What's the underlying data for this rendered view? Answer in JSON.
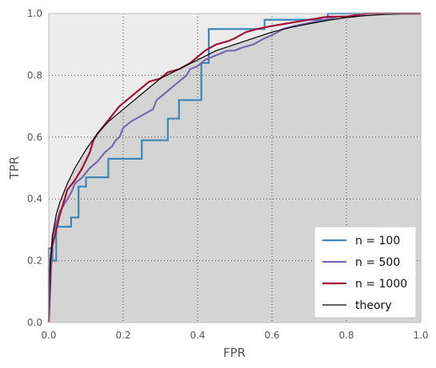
{
  "chart_data": {
    "type": "line",
    "title": "",
    "xlabel": "FPR",
    "ylabel": "TPR",
    "xlim": [
      0.0,
      1.0
    ],
    "ylim": [
      0.0,
      1.0
    ],
    "xticks": [
      "0.0",
      "0.2",
      "0.4",
      "0.6",
      "0.8",
      "1.0"
    ],
    "yticks": [
      "0.0",
      "0.2",
      "0.4",
      "0.6",
      "0.8",
      "1.0"
    ],
    "grid": true,
    "legend_position": "bottom-right",
    "colors": {
      "plot_background": "#ececec",
      "below_theory_fill": "#d4d4d4",
      "grid": "#444444",
      "frame": "#bbbbbb"
    },
    "series": [
      {
        "name": "n = 100",
        "color": "#3a87b8",
        "step": true,
        "x": [
          0.0,
          0.0,
          0.01,
          0.01,
          0.02,
          0.02,
          0.06,
          0.06,
          0.08,
          0.08,
          0.1,
          0.1,
          0.16,
          0.16,
          0.19,
          0.19,
          0.25,
          0.25,
          0.32,
          0.32,
          0.35,
          0.35,
          0.4,
          0.4,
          0.41,
          0.41,
          0.43,
          0.43,
          0.58,
          0.58,
          0.75,
          0.75,
          1.0
        ],
        "y": [
          0.0,
          0.24,
          0.24,
          0.2,
          0.2,
          0.31,
          0.31,
          0.34,
          0.34,
          0.44,
          0.44,
          0.47,
          0.47,
          0.53,
          0.53,
          0.53,
          0.53,
          0.59,
          0.59,
          0.66,
          0.66,
          0.72,
          0.72,
          0.72,
          0.72,
          0.84,
          0.84,
          0.95,
          0.95,
          0.98,
          0.98,
          1.0,
          1.0
        ]
      },
      {
        "name": "n = 500",
        "color": "#7a68ae",
        "step": false,
        "x": [
          0.0,
          0.01,
          0.02,
          0.03,
          0.04,
          0.06,
          0.07,
          0.09,
          0.11,
          0.13,
          0.15,
          0.17,
          0.18,
          0.19,
          0.2,
          0.22,
          0.25,
          0.28,
          0.29,
          0.3,
          0.32,
          0.33,
          0.35,
          0.37,
          0.38,
          0.4,
          0.42,
          0.44,
          0.46,
          0.48,
          0.5,
          0.52,
          0.55,
          0.58,
          0.6,
          0.63,
          0.66,
          0.7,
          0.74,
          0.78,
          0.82,
          0.86,
          0.9,
          0.95,
          1.0
        ],
        "y": [
          0.0,
          0.28,
          0.32,
          0.36,
          0.38,
          0.42,
          0.45,
          0.47,
          0.5,
          0.52,
          0.55,
          0.57,
          0.59,
          0.6,
          0.63,
          0.65,
          0.67,
          0.69,
          0.72,
          0.73,
          0.75,
          0.76,
          0.78,
          0.8,
          0.82,
          0.83,
          0.85,
          0.86,
          0.87,
          0.88,
          0.88,
          0.89,
          0.9,
          0.92,
          0.93,
          0.95,
          0.96,
          0.97,
          0.98,
          0.99,
          0.99,
          1.0,
          1.0,
          1.0,
          1.0
        ]
      },
      {
        "name": "n = 1000",
        "color": "#a31234",
        "step": false,
        "x": [
          0.0,
          0.005,
          0.01,
          0.02,
          0.03,
          0.04,
          0.05,
          0.07,
          0.09,
          0.11,
          0.12,
          0.13,
          0.15,
          0.17,
          0.19,
          0.21,
          0.23,
          0.25,
          0.27,
          0.3,
          0.32,
          0.35,
          0.38,
          0.4,
          0.42,
          0.45,
          0.48,
          0.5,
          0.53,
          0.56,
          0.6,
          0.65,
          0.7,
          0.75,
          0.8,
          0.85,
          0.9,
          0.95,
          1.0
        ],
        "y": [
          0.0,
          0.2,
          0.25,
          0.3,
          0.35,
          0.39,
          0.43,
          0.46,
          0.5,
          0.55,
          0.59,
          0.61,
          0.64,
          0.67,
          0.7,
          0.72,
          0.74,
          0.76,
          0.78,
          0.79,
          0.81,
          0.82,
          0.84,
          0.86,
          0.88,
          0.9,
          0.91,
          0.92,
          0.94,
          0.95,
          0.96,
          0.97,
          0.98,
          0.99,
          0.99,
          1.0,
          1.0,
          1.0,
          1.0
        ]
      },
      {
        "name": "theory",
        "color": "#000000",
        "step": false,
        "x": [
          0.0,
          0.002,
          0.005,
          0.01,
          0.02,
          0.03,
          0.05,
          0.07,
          0.1,
          0.13,
          0.16,
          0.2,
          0.25,
          0.3,
          0.35,
          0.4,
          0.45,
          0.5,
          0.55,
          0.6,
          0.65,
          0.7,
          0.75,
          0.8,
          0.85,
          0.9,
          0.95,
          1.0
        ],
        "y": [
          0.0,
          0.16,
          0.22,
          0.28,
          0.35,
          0.39,
          0.45,
          0.5,
          0.56,
          0.61,
          0.65,
          0.69,
          0.74,
          0.79,
          0.82,
          0.85,
          0.88,
          0.9,
          0.92,
          0.94,
          0.955,
          0.967,
          0.978,
          0.987,
          0.993,
          0.997,
          0.999,
          1.0
        ]
      }
    ]
  }
}
